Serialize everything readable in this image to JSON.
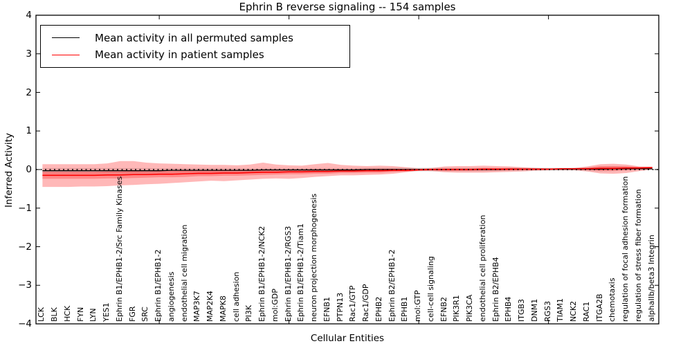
{
  "figure_title": "Ephrin B reverse signaling -- 154 samples",
  "legend": {
    "entries": [
      {
        "label": "Mean activity in all permuted samples",
        "color": "#000000"
      },
      {
        "label": "Mean activity in patient samples",
        "color": "#ff0000"
      }
    ],
    "position": "upper left"
  },
  "colors": {
    "patient_line": "#ff0000",
    "permuted_line": "#000000",
    "patient_band": "rgba(255,0,0,0.28)",
    "patient_inner_band": "rgba(255,0,0,0.26)",
    "permuted_band": "rgba(0,0,0,0.11)",
    "axis": "#000000"
  },
  "chart_data": {
    "type": "line",
    "title": "Ephrin B reverse signaling -- 154 samples",
    "xlabel": "Cellular Entities",
    "ylabel": "Inferred Activity",
    "ylim": [
      -4,
      4
    ],
    "ytick_labels": [
      "4",
      "3",
      "2",
      "1",
      "0",
      "−1",
      "−2",
      "−3",
      "−4"
    ],
    "ytick_values": [
      4,
      3,
      2,
      1,
      0,
      -1,
      -2,
      -3,
      -4
    ],
    "x_major_tick_indices": [
      9,
      19,
      29,
      39
    ],
    "grid": false,
    "legend_position": "upper left",
    "zero_reference_line": {
      "y": 0,
      "style": "dotted",
      "color": "#000000"
    },
    "categories": [
      "LCK",
      "BLK",
      "HCK",
      "FYN",
      "LYN",
      "YES1",
      "Ephrin B1/EPHB1-2/Src Family Kinases",
      "FGR",
      "SRC",
      "Ephrin B1/EPHB1-2",
      "angiogenesis",
      "endothelial cell migration",
      "MAP3K7",
      "MAP2K4",
      "MAPK8",
      "cell adhesion",
      "PI3K",
      "Ephrin B1/EPHB1-2/NCK2",
      "mol:GDP",
      "Ephrin B1/EPHB1-2/RGS3",
      "Ephrin B1/EPHB1-2/Tiam1",
      "neuron projection morphogenesis",
      "EFNB1",
      "PTPN13",
      "Rac1/GTP",
      "Rac1/GDP",
      "EPHB2",
      "Ephrin B2/EPHB1-2",
      "EPHB1",
      "mol:GTP",
      "cell-cell signaling",
      "EFNB2",
      "PIK3R1",
      "PIK3CA",
      "endothelial cell proliferation",
      "Ephrin B2/EPHB4",
      "EPHB4",
      "ITGB3",
      "DNM1",
      "RGS3",
      "TIAM1",
      "NCK2",
      "RAC1",
      "ITGA2B",
      "chemotaxis",
      "regulation of focal adhesion formation",
      "regulation of stress fiber formation",
      "alphaIIb/beta3 Integrin"
    ],
    "series": [
      {
        "name": "Mean activity in all permuted samples",
        "color": "#000000",
        "values": [
          -0.03,
          -0.03,
          -0.03,
          -0.03,
          -0.03,
          -0.03,
          -0.03,
          -0.03,
          -0.03,
          -0.03,
          -0.02,
          -0.02,
          -0.02,
          -0.02,
          -0.02,
          -0.02,
          -0.02,
          -0.01,
          -0.01,
          -0.01,
          -0.01,
          -0.01,
          -0.01,
          -0.01,
          -0.01,
          0,
          0,
          0,
          0,
          0,
          0,
          0,
          0,
          0,
          0,
          0,
          0.01,
          0.01,
          0.01,
          0.01,
          0.01,
          0.01,
          0.01,
          0.01,
          0.02,
          0.02,
          0.02,
          0.02
        ]
      },
      {
        "name": "Mean activity in patient samples",
        "color": "#ff0000",
        "values": [
          -0.15,
          -0.15,
          -0.15,
          -0.15,
          -0.15,
          -0.14,
          -0.14,
          -0.13,
          -0.13,
          -0.12,
          -0.12,
          -0.11,
          -0.1,
          -0.1,
          -0.09,
          -0.09,
          -0.08,
          -0.07,
          -0.07,
          -0.06,
          -0.06,
          -0.05,
          -0.05,
          -0.04,
          -0.04,
          -0.03,
          -0.03,
          -0.02,
          -0.02,
          -0.01,
          0.0,
          0.0,
          0.0,
          0.0,
          0.01,
          0.01,
          0.01,
          0.01,
          0.01,
          0.01,
          0.02,
          0.02,
          0.02,
          0.03,
          0.03,
          0.04,
          0.04,
          0.05
        ]
      }
    ],
    "bands": [
      {
        "name": "patient-std-band",
        "top": [
          0.14,
          0.14,
          0.14,
          0.14,
          0.14,
          0.16,
          0.22,
          0.22,
          0.18,
          0.16,
          0.15,
          0.14,
          0.13,
          0.12,
          0.12,
          0.11,
          0.13,
          0.18,
          0.13,
          0.11,
          0.1,
          0.14,
          0.17,
          0.12,
          0.1,
          0.09,
          0.1,
          0.09,
          0.06,
          0.03,
          0.04,
          0.08,
          0.09,
          0.09,
          0.1,
          0.09,
          0.08,
          0.06,
          0.04,
          0.03,
          0.03,
          0.04,
          0.08,
          0.14,
          0.15,
          0.13,
          0.08,
          0.07
        ],
        "bottom": [
          -0.45,
          -0.45,
          -0.45,
          -0.44,
          -0.44,
          -0.43,
          -0.41,
          -0.4,
          -0.38,
          -0.37,
          -0.35,
          -0.33,
          -0.31,
          -0.29,
          -0.3,
          -0.28,
          -0.26,
          -0.24,
          -0.23,
          -0.24,
          -0.22,
          -0.19,
          -0.17,
          -0.15,
          -0.15,
          -0.14,
          -0.13,
          -0.11,
          -0.07,
          -0.03,
          -0.04,
          -0.07,
          -0.08,
          -0.08,
          -0.08,
          -0.07,
          -0.06,
          -0.05,
          -0.03,
          -0.02,
          -0.02,
          -0.02,
          -0.05,
          -0.1,
          -0.11,
          -0.09,
          -0.04,
          0.0
        ]
      },
      {
        "name": "patient-inner-band",
        "center_series": 1,
        "halfwidths": [
          0.09,
          0.09,
          0.09,
          0.09,
          0.09,
          0.09,
          0.09,
          0.09,
          0.08,
          0.08,
          0.08,
          0.08,
          0.07,
          0.07,
          0.07,
          0.07,
          0.07,
          0.07,
          0.06,
          0.06,
          0.06,
          0.06,
          0.06,
          0.05,
          0.05,
          0.05,
          0.05,
          0.04,
          0.03,
          0.02,
          0.02,
          0.03,
          0.03,
          0.03,
          0.03,
          0.03,
          0.03,
          0.02,
          0.02,
          0.01,
          0.01,
          0.01,
          0.03,
          0.06,
          0.06,
          0.05,
          0.03,
          0.02
        ]
      },
      {
        "name": "permuted-std-band",
        "center_series": 0,
        "halfwidths": [
          0.07,
          0.07,
          0.07,
          0.07,
          0.07,
          0.07,
          0.07,
          0.07,
          0.07,
          0.06,
          0.06,
          0.06,
          0.06,
          0.06,
          0.06,
          0.06,
          0.05,
          0.05,
          0.05,
          0.05,
          0.05,
          0.05,
          0.05,
          0.05,
          0.05,
          0.05,
          0.05,
          0.05,
          0.05,
          0.05,
          0.05,
          0.05,
          0.05,
          0.05,
          0.05,
          0.04,
          0.04,
          0.04,
          0.04,
          0.04,
          0.04,
          0.04,
          0.05,
          0.06,
          0.06,
          0.05,
          0.04,
          0.03
        ]
      }
    ]
  }
}
